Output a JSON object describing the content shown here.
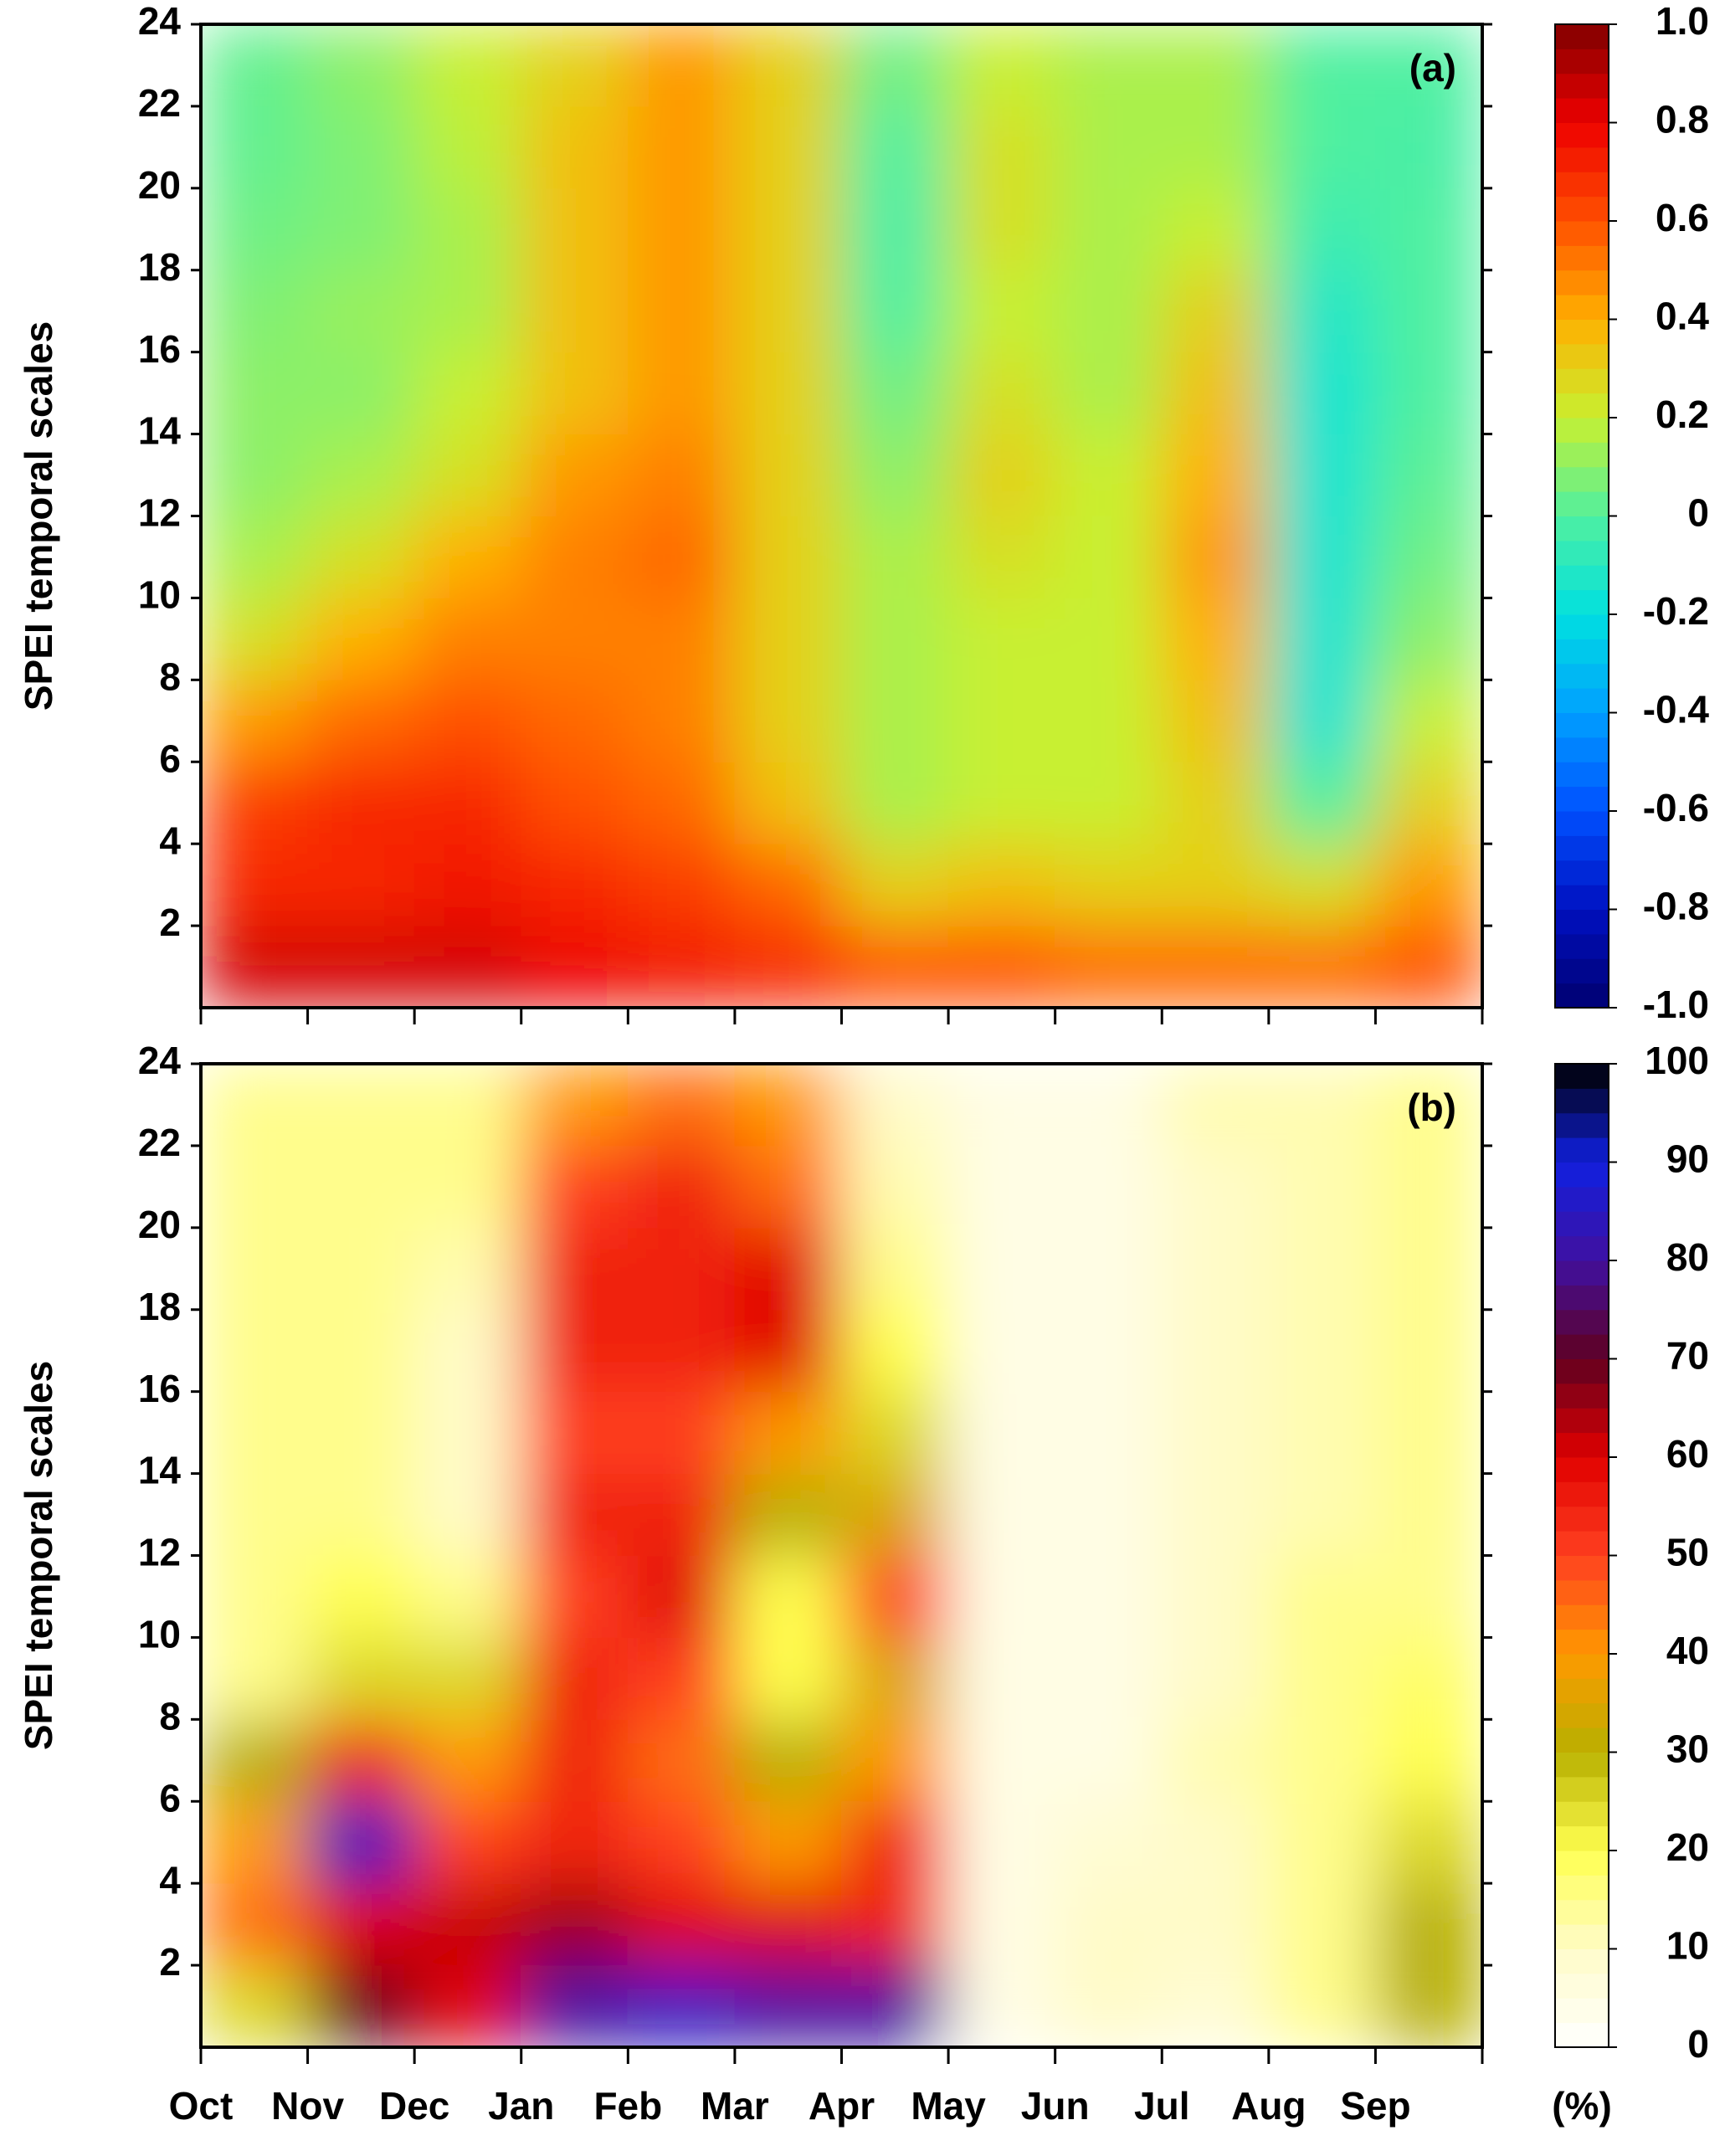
{
  "chart_data": [
    {
      "type": "heatmap",
      "panel_label": "(a)",
      "ylabel": "SPEI temporal scales",
      "y": [
        1,
        3,
        5,
        7,
        9,
        11,
        13,
        15,
        17,
        19,
        21,
        23
      ],
      "z": [
        [
          0.85,
          0.85,
          0.85,
          0.8,
          0.75,
          0.7,
          0.6,
          0.6,
          0.55,
          0.55,
          0.55,
          0.6
        ],
        [
          0.7,
          0.7,
          0.75,
          0.7,
          0.65,
          0.55,
          0.3,
          0.35,
          0.3,
          0.3,
          0.25,
          0.45
        ],
        [
          0.65,
          0.7,
          0.7,
          0.6,
          0.55,
          0.35,
          0.15,
          0.2,
          0.2,
          0.3,
          0.0,
          0.3
        ],
        [
          0.45,
          0.55,
          0.6,
          0.55,
          0.5,
          0.3,
          0.15,
          0.2,
          0.2,
          0.35,
          -0.15,
          0.2
        ],
        [
          0.25,
          0.4,
          0.5,
          0.5,
          0.5,
          0.3,
          0.15,
          0.2,
          0.2,
          0.4,
          -0.15,
          0.1
        ],
        [
          0.15,
          0.25,
          0.4,
          0.5,
          0.55,
          0.3,
          0.15,
          0.25,
          0.2,
          0.45,
          -0.15,
          0.05
        ],
        [
          0.1,
          0.15,
          0.25,
          0.45,
          0.5,
          0.3,
          0.1,
          0.3,
          0.2,
          0.4,
          -0.15,
          0.02
        ],
        [
          0.1,
          0.1,
          0.2,
          0.35,
          0.45,
          0.3,
          0.05,
          0.25,
          0.15,
          0.35,
          -0.15,
          0.0
        ],
        [
          0.08,
          0.12,
          0.15,
          0.35,
          0.45,
          0.3,
          0.0,
          0.2,
          0.15,
          0.3,
          -0.12,
          0.0
        ],
        [
          0.05,
          0.08,
          0.15,
          0.35,
          0.45,
          0.3,
          -0.02,
          0.25,
          0.15,
          0.2,
          -0.05,
          0.0
        ],
        [
          0.03,
          0.08,
          0.18,
          0.35,
          0.45,
          0.3,
          0.0,
          0.25,
          0.15,
          0.15,
          0.0,
          -0.02
        ],
        [
          0.03,
          0.1,
          0.2,
          0.3,
          0.45,
          0.3,
          0.05,
          0.2,
          0.15,
          0.15,
          0.0,
          0.0
        ]
      ],
      "ylim": [
        0,
        24
      ],
      "yticks": [
        2,
        4,
        6,
        8,
        10,
        12,
        14,
        16,
        18,
        20,
        22,
        24
      ],
      "clim": [
        -1,
        1
      ],
      "cticks": [
        {
          "value": -1,
          "label": "-1.0"
        },
        -0.8,
        -0.6,
        -0.4,
        -0.2,
        0,
        0.2,
        0.4,
        0.6,
        0.8,
        {
          "value": 1,
          "label": "1.0"
        }
      ],
      "colormap": [
        "#000070",
        "#0010c0",
        "#0050ff",
        "#00a0ff",
        "#00e0e0",
        "#50f0a0",
        "#c8f030",
        "#ffb000",
        "#ff5000",
        "#ee0000",
        "#800000"
      ]
    },
    {
      "type": "heatmap",
      "panel_label": "(b)",
      "ylabel": "SPEI temporal scales",
      "colorbar_label": "(%)",
      "categories": [
        "Oct",
        "Nov",
        "Dec",
        "Jan",
        "Feb",
        "Mar",
        "Apr",
        "May",
        "Jun",
        "Jul",
        "Aug",
        "Sep",
        null
      ],
      "y": [
        1,
        3,
        5,
        7,
        9,
        11,
        13,
        15,
        17,
        19,
        21,
        23
      ],
      "z": [
        [
          25,
          70,
          60,
          80,
          85,
          80,
          80,
          5,
          10,
          8,
          15,
          30
        ],
        [
          45,
          60,
          62,
          65,
          60,
          60,
          55,
          5,
          10,
          10,
          15,
          30
        ],
        [
          40,
          85,
          50,
          55,
          50,
          40,
          55,
          5,
          8,
          10,
          15,
          25
        ],
        [
          30,
          55,
          40,
          55,
          45,
          30,
          40,
          5,
          5,
          12,
          15,
          20
        ],
        [
          15,
          25,
          25,
          55,
          50,
          20,
          35,
          5,
          5,
          10,
          15,
          18
        ],
        [
          15,
          20,
          15,
          50,
          60,
          20,
          50,
          5,
          5,
          10,
          15,
          15
        ],
        [
          15,
          15,
          10,
          55,
          55,
          30,
          35,
          5,
          5,
          10,
          12,
          15
        ],
        [
          15,
          15,
          10,
          50,
          50,
          40,
          25,
          5,
          5,
          10,
          12,
          15
        ],
        [
          15,
          15,
          10,
          55,
          55,
          60,
          20,
          5,
          5,
          10,
          12,
          15
        ],
        [
          15,
          15,
          12,
          55,
          55,
          60,
          15,
          5,
          5,
          10,
          12,
          15
        ],
        [
          15,
          15,
          15,
          50,
          55,
          45,
          12,
          5,
          5,
          10,
          12,
          15
        ],
        [
          15,
          15,
          15,
          40,
          45,
          40,
          10,
          5,
          5,
          12,
          12,
          15
        ]
      ],
      "ylim": [
        0,
        24
      ],
      "yticks": [
        2,
        4,
        6,
        8,
        10,
        12,
        14,
        16,
        18,
        20,
        22,
        24
      ],
      "clim": [
        0,
        100
      ],
      "cticks": [
        0,
        10,
        20,
        30,
        40,
        50,
        60,
        70,
        80,
        90,
        100
      ],
      "colormap": [
        "#ffffff",
        "#fffbc8",
        "#ffff50",
        "#b8b000",
        "#ff9900",
        "#ff4020",
        "#e00000",
        "#600020",
        "#4010a0",
        "#1020e0",
        "#000000"
      ]
    }
  ]
}
